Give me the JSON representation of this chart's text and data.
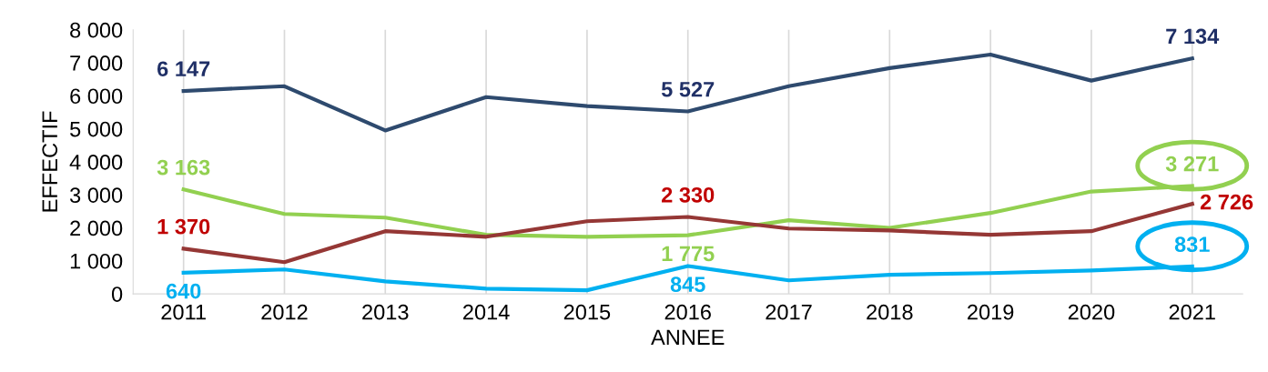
{
  "chart_data": {
    "type": "line",
    "xlabel": "ANNEE",
    "ylabel": "EFFECTIF",
    "categories": [
      "2011",
      "2012",
      "2013",
      "2014",
      "2015",
      "2016",
      "2017",
      "2018",
      "2019",
      "2020",
      "2021"
    ],
    "ylim": [
      0,
      8000
    ],
    "yticks": [
      0,
      {
        "value": 1000,
        "label": "1 000"
      },
      {
        "value": 2000,
        "label": "2 000"
      },
      {
        "value": 3000,
        "label": "3 000"
      },
      {
        "value": 4000,
        "label": "4 000"
      },
      {
        "value": 5000,
        "label": "5 000"
      },
      {
        "value": 6000,
        "label": "6 000"
      },
      {
        "value": 7000,
        "label": "7 000"
      },
      {
        "value": 8000,
        "label": "8 000"
      }
    ],
    "grid": "x",
    "legend": false,
    "marker": "none",
    "line_style": "solid",
    "series": [
      {
        "color": "#2e4a6e",
        "values": [
          6147,
          6290,
          4950,
          5960,
          5690,
          5527,
          6290,
          6840,
          7250,
          6460,
          7134
        ],
        "value_labels": [
          "6 147",
          null,
          null,
          null,
          null,
          "5 527",
          null,
          null,
          null,
          null,
          "7 134"
        ]
      },
      {
        "color": "#92d050",
        "values": [
          3163,
          2420,
          2310,
          1790,
          1730,
          1775,
          2230,
          2000,
          2450,
          3100,
          3271
        ],
        "value_labels": [
          "3 163",
          null,
          null,
          null,
          null,
          "1 775",
          null,
          null,
          null,
          null,
          "3 271"
        ]
      },
      {
        "color": "#953735",
        "values": [
          1370,
          960,
          1900,
          1730,
          2200,
          2330,
          1980,
          1920,
          1790,
          1900,
          2726
        ],
        "value_labels": [
          "1 370",
          null,
          null,
          null,
          null,
          "2 330",
          null,
          null,
          null,
          null,
          "2 726"
        ]
      },
      {
        "color": "#00b0f0",
        "values": [
          640,
          740,
          380,
          160,
          110,
          845,
          410,
          580,
          630,
          710,
          831
        ],
        "value_labels": [
          "640",
          null,
          null,
          null,
          null,
          "845",
          null,
          null,
          null,
          null,
          "831"
        ]
      }
    ]
  }
}
